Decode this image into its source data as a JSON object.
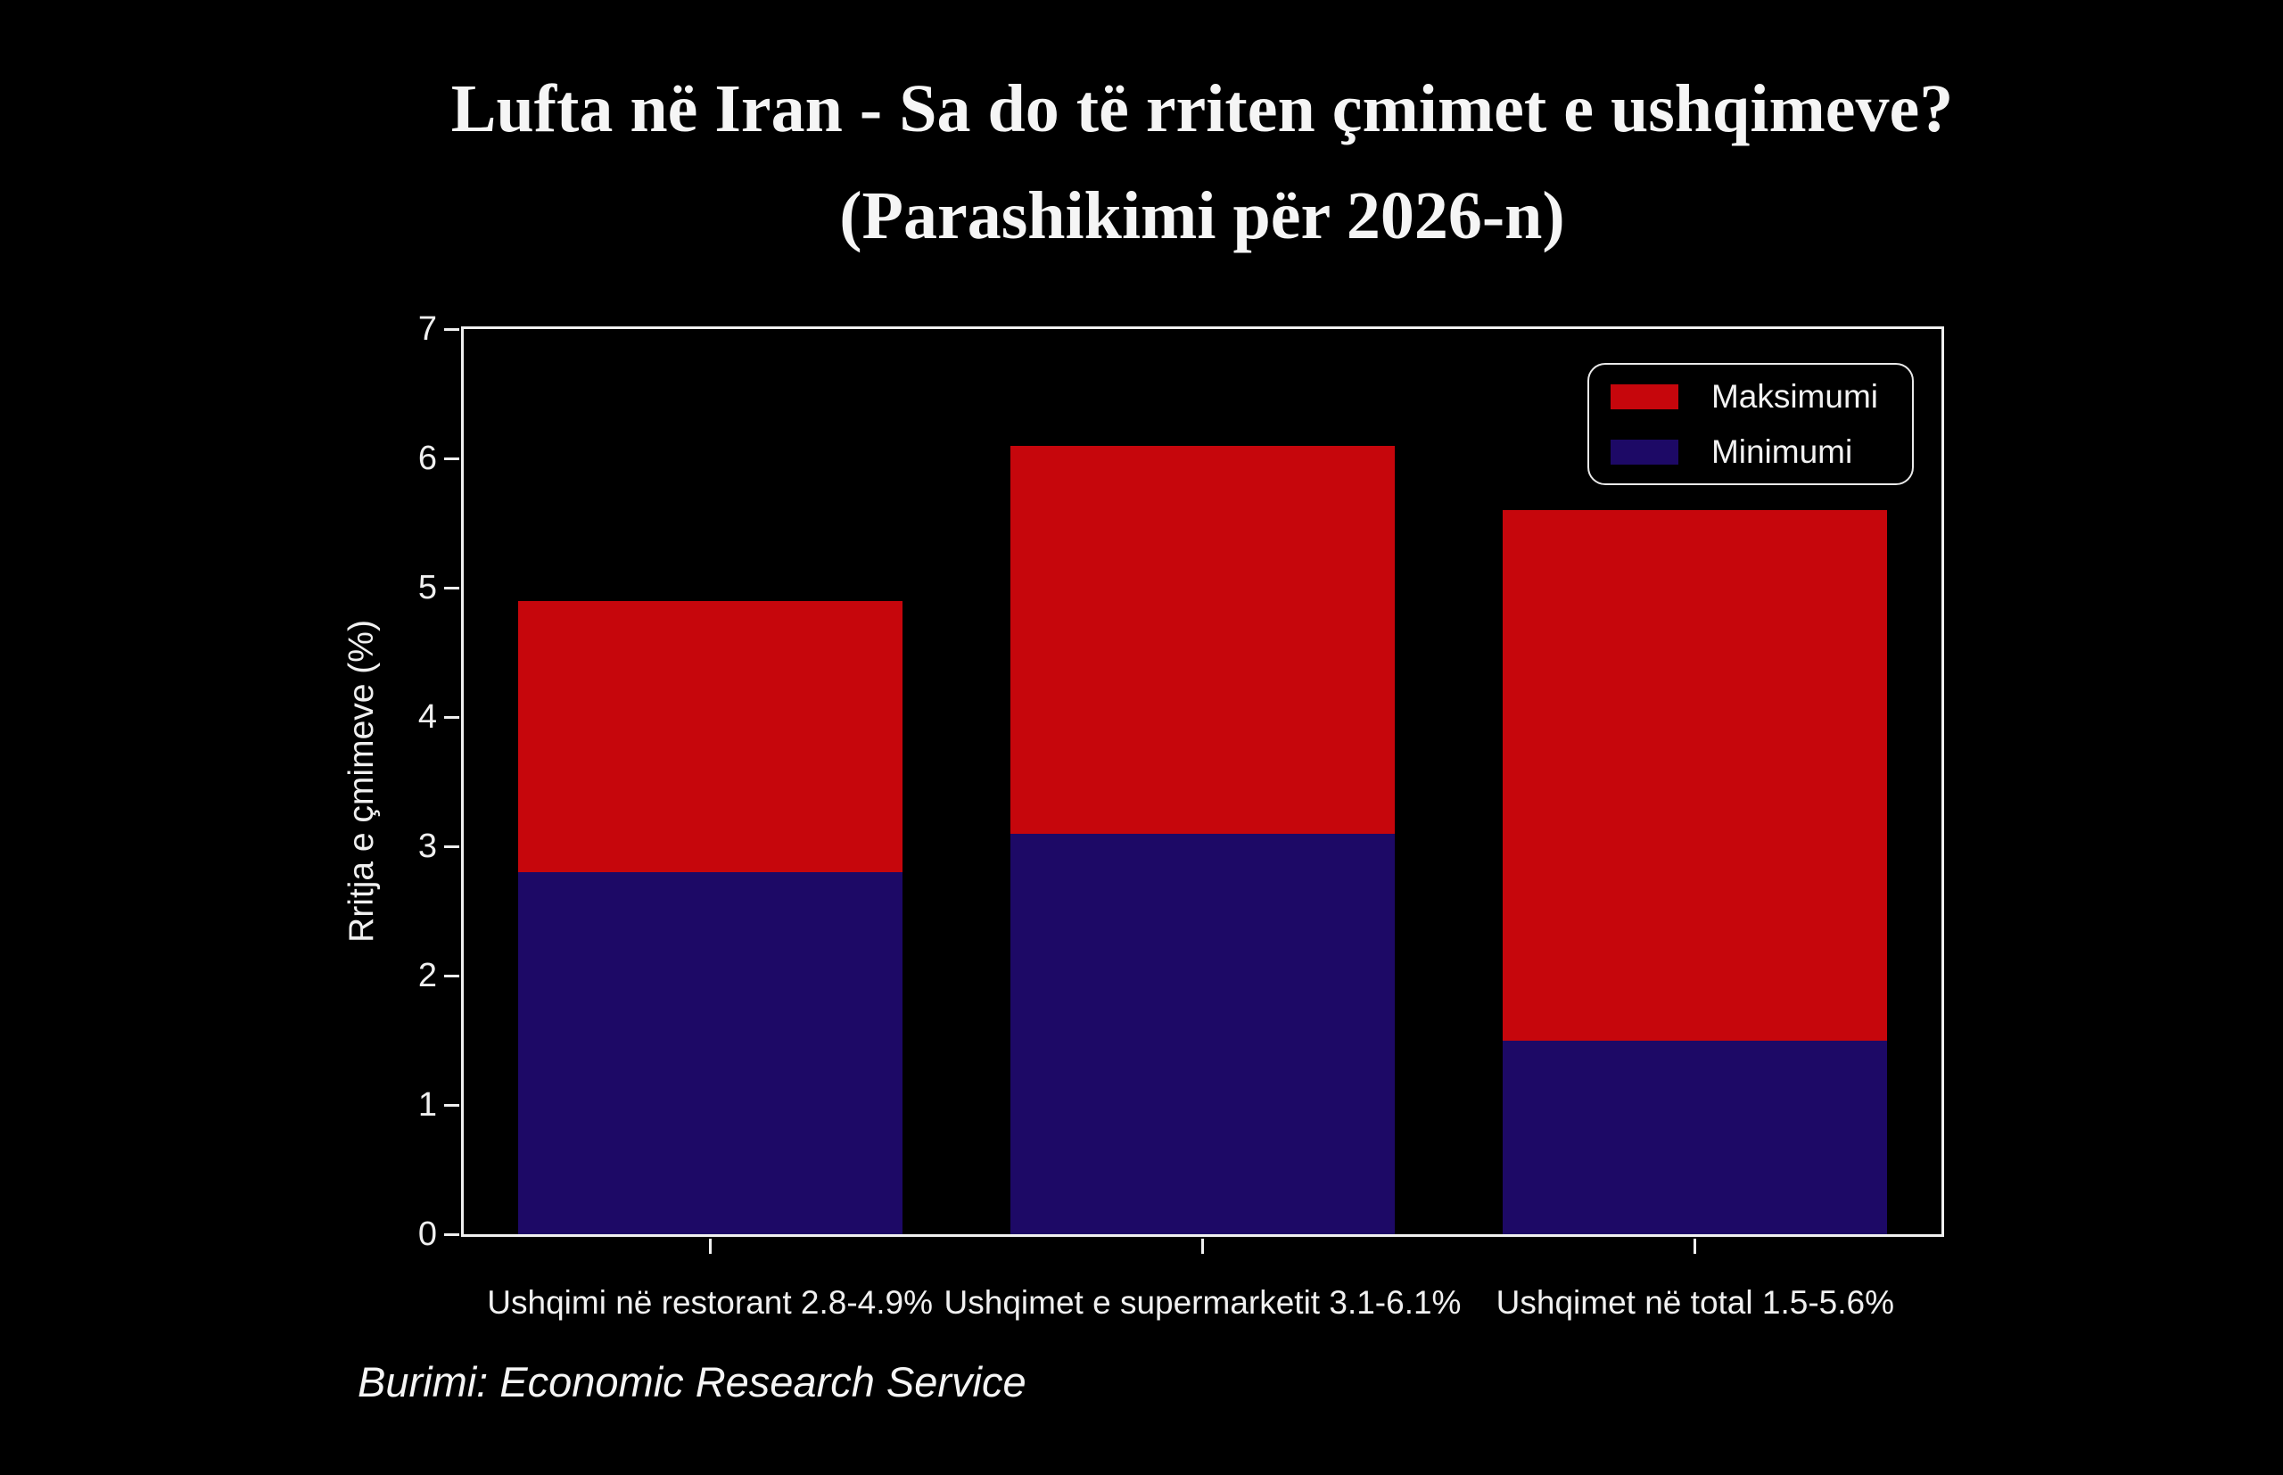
{
  "title": {
    "line1": "Lufta në Iran - Sa do të rriten çmimet e ushqimeve?",
    "line2": "(Parashikimi për 2026-n)"
  },
  "source_note": "Burimi: Economic Research Service",
  "chart_data": {
    "type": "bar",
    "stacked": true,
    "title": "Lufta në Iran - Sa do të rriten çmimet e ushqimeve? (Parashikimi për 2026-n)",
    "categories": [
      "Ushqimi në restorant 2.8-4.9%",
      "Ushqimet e supermarketit 3.1-6.1%",
      "Ushqimet në total 1.5-5.6%"
    ],
    "series": [
      {
        "name": "Minimumi",
        "role": "minimum-segment-top",
        "color": "#1D0966",
        "values": [
          2.8,
          3.1,
          1.5
        ]
      },
      {
        "name": "Maksimumi",
        "role": "bar-top",
        "color": "#C6060C",
        "values": [
          4.9,
          6.1,
          5.6
        ]
      }
    ],
    "xlabel": "",
    "ylabel": "Rritja e çmimeve (%)",
    "ylim": [
      0,
      7
    ],
    "yticks": [
      0,
      1,
      2,
      3,
      4,
      5,
      6,
      7
    ],
    "bar_width_fraction": 0.78,
    "grid": false,
    "legend": {
      "position": "top-right",
      "entries": [
        {
          "label": "Maksimumi",
          "color": "#C6060C"
        },
        {
          "label": "Minimumi",
          "color": "#1D0966"
        }
      ]
    },
    "style": {
      "background": "#000000",
      "axis_color": "#F0F0F0",
      "text_color": "#F2F2F2"
    }
  }
}
